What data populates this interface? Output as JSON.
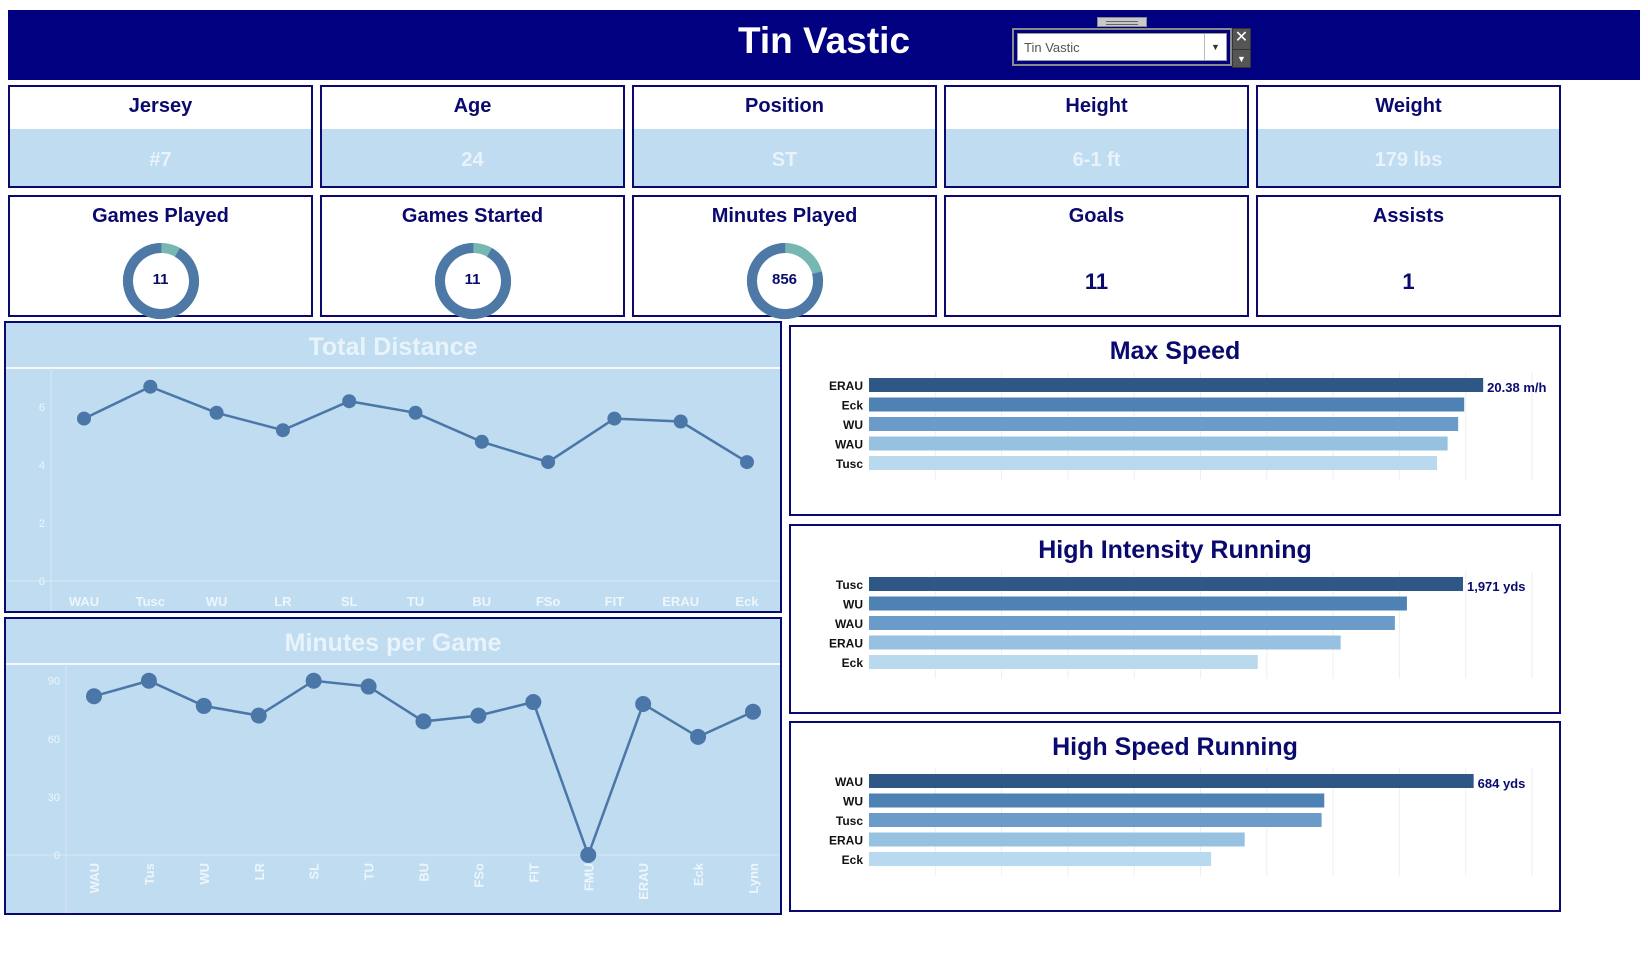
{
  "header": {
    "title": "Tin Vastic",
    "player_select": {
      "value": "Tin Vastic"
    },
    "background_color": "#000080"
  },
  "profile": [
    {
      "label": "Jersey",
      "value": "#7"
    },
    {
      "label": "Age",
      "value": "24"
    },
    {
      "label": "Position",
      "value": "ST"
    },
    {
      "label": "Height",
      "value": "6-1 ft"
    },
    {
      "label": "Weight",
      "value": "179 lbs"
    }
  ],
  "stats": {
    "games_played": {
      "label": "Games Played",
      "value": "11",
      "ring_fraction": 0.917
    },
    "games_started": {
      "label": "Games Started",
      "value": "11",
      "ring_fraction": 0.917
    },
    "minutes_played": {
      "label": "Minutes Played",
      "value": "856",
      "ring_fraction": 0.79
    },
    "goals": {
      "label": "Goals",
      "value": "11"
    },
    "assists": {
      "label": "Assists",
      "value": "1"
    }
  },
  "colors": {
    "navy": "#0a0a6e",
    "panel_light": "#bfdcf0",
    "line": "#4a76a8",
    "ring_main": "#4e79a7",
    "ring_rest": "#76b7b2",
    "bar_shades": [
      "#2e5786",
      "#4e82b4",
      "#6b9bc9",
      "#97c1e0",
      "#b9d9ef"
    ]
  },
  "chart_data": [
    {
      "id": "total_distance",
      "type": "line",
      "title": "Total Distance",
      "categories": [
        "WAU",
        "Tusc",
        "WU",
        "LR",
        "SL",
        "TU",
        "BU",
        "FSo",
        "FIT",
        "ERAU",
        "Eck"
      ],
      "values": [
        5.6,
        6.7,
        5.8,
        5.2,
        6.2,
        5.8,
        4.8,
        4.1,
        5.6,
        5.5,
        4.1
      ],
      "yticks": [
        0,
        2,
        4,
        6
      ],
      "ylim": [
        0,
        7.0
      ],
      "grid": false
    },
    {
      "id": "minutes_per_game",
      "type": "line",
      "title": "Minutes per Game",
      "categories": [
        "WAU",
        "Tus",
        "WU",
        "LR",
        "SL",
        "TU",
        "BU",
        "FSo",
        "FIT",
        "FMU",
        "ERAU",
        "Eck",
        "Lynn"
      ],
      "values": [
        82,
        90,
        77,
        72,
        90,
        87,
        69,
        72,
        79,
        0,
        78,
        61,
        74
      ],
      "yticks": [
        0,
        30,
        60,
        90
      ],
      "ylim": [
        0,
        94
      ],
      "grid": false
    },
    {
      "id": "max_speed",
      "type": "bar",
      "title": "Max Speed",
      "categories": [
        "ERAU",
        "Eck",
        "WU",
        "WAU",
        "Tusc"
      ],
      "values": [
        20.38,
        19.75,
        19.55,
        19.2,
        18.85
      ],
      "xlim": [
        0,
        22
      ],
      "top_label": "20.38 m/h"
    },
    {
      "id": "high_intensity_running",
      "type": "bar",
      "title": "High Intensity Running",
      "categories": [
        "Tusc",
        "WU",
        "WAU",
        "ERAU",
        "Eck"
      ],
      "values": [
        1971,
        1785,
        1745,
        1565,
        1290
      ],
      "xlim": [
        0,
        2200
      ],
      "top_label": "1,971 yds"
    },
    {
      "id": "high_speed_running",
      "type": "bar",
      "title": "High Speed Running",
      "categories": [
        "WAU",
        "WU",
        "Tusc",
        "ERAU",
        "Eck"
      ],
      "values": [
        684,
        515,
        512,
        425,
        387
      ],
      "xlim": [
        0,
        750
      ],
      "top_label": "684 yds"
    }
  ]
}
